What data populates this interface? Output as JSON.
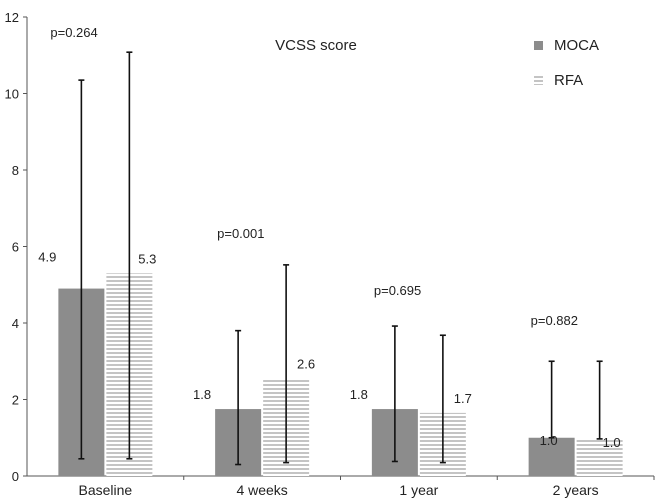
{
  "chart_data": {
    "type": "bar",
    "title": "VCSS score",
    "xlabel": "",
    "ylabel": "",
    "ylim": [
      0,
      12
    ],
    "yticks": [
      "0",
      "2",
      "4",
      "6",
      "8",
      "10",
      "12"
    ],
    "grid": false,
    "legend_position": "top-right",
    "categories": [
      "Baseline",
      "4 weeks",
      "1 year",
      "2 years"
    ],
    "p_values": [
      "p=0.264",
      "p=0.001",
      "p=0.695",
      "p=0.882"
    ],
    "series": [
      {
        "name": "MOCA",
        "color": "#8c8c8c",
        "pattern": "solid",
        "values": [
          4.9,
          1.75,
          1.75,
          1.0
        ],
        "value_labels": [
          "4.9",
          "1.8",
          "1.8",
          "1.0"
        ],
        "error_low": [
          0.45,
          0.3,
          0.38,
          1.0
        ],
        "error_high": [
          10.35,
          3.8,
          3.92,
          3.0
        ]
      },
      {
        "name": "RFA",
        "color": "#c8c8c8",
        "pattern": "striped",
        "values": [
          5.3,
          2.55,
          1.65,
          0.97
        ],
        "value_labels": [
          "5.3",
          "2.6",
          "1.7",
          "1.0"
        ],
        "error_low": [
          0.45,
          0.35,
          0.35,
          0.97
        ],
        "error_high": [
          11.08,
          5.52,
          3.68,
          3.0
        ]
      }
    ]
  }
}
